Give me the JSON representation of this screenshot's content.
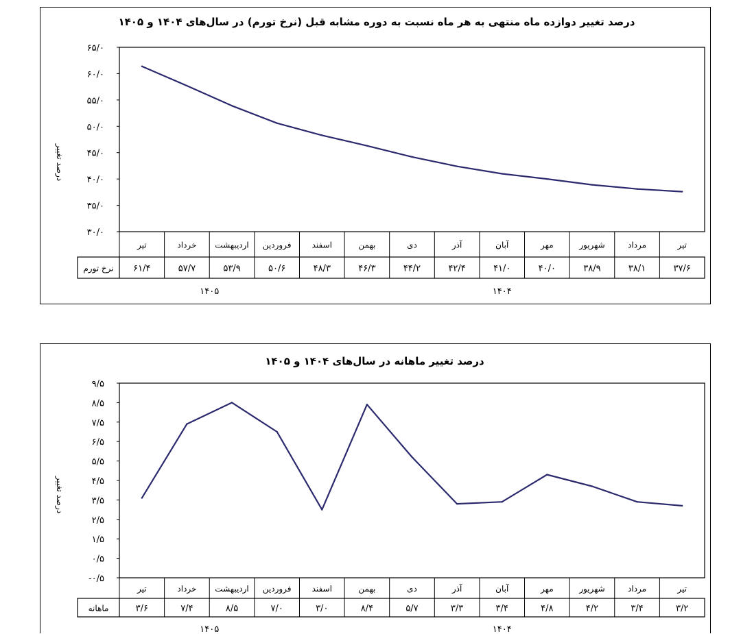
{
  "chart_data": [
    {
      "type": "line",
      "title": "درصد تغییر دوازده ماه منتهی به هر ماه نسبت به دوره مشابه قبل (نرخ تورم) در سال‌های ۱۴۰۴ و ۱۴۰۵",
      "ylabel": "درصد تغییر",
      "ylim": [
        30,
        65
      ],
      "yticks": [
        30,
        35,
        40,
        45,
        50,
        55,
        60,
        65
      ],
      "ytick_labels": [
        "۳۰/۰",
        "۳۵/۰",
        "۴۰/۰",
        "۴۵/۰",
        "۵۰/۰",
        "۵۵/۰",
        "۶۰/۰",
        "۶۵/۰"
      ],
      "grid": false,
      "line_color": "#2b2a6e",
      "categories": [
        "تیر",
        "مرداد",
        "شهریور",
        "مهر",
        "آبان",
        "آذر",
        "دی",
        "بهمن",
        "اسفند",
        "فروردین",
        "اردیبهشت",
        "خرداد",
        "تیر"
      ],
      "series": [
        {
          "values": [
            37.6,
            38.1,
            38.9,
            40.0,
            41.0,
            42.4,
            44.2,
            46.3,
            48.3,
            50.6,
            53.9,
            57.7,
            61.4
          ],
          "value_labels": [
            "۳۷/۶",
            "۳۸/۱",
            "۳۸/۹",
            "۴۰/۰",
            "۴۱/۰",
            "۴۲/۴",
            "۴۴/۲",
            "۴۶/۳",
            "۴۸/۳",
            "۵۰/۶",
            "۵۳/۹",
            "۵۷/۷",
            "۶۱/۴"
          ]
        }
      ],
      "table_row_label": "نرخ تورم",
      "year_labels": [
        "۱۴۰۴",
        "۱۴۰۵"
      ],
      "year_groups": [
        9,
        4
      ]
    },
    {
      "type": "line",
      "title": "درصد تغییر ماهانه در سال‌های ۱۴۰۴ و ۱۴۰۵",
      "ylabel": "درصد تغییر",
      "ylim": [
        -0.5,
        9.5
      ],
      "yticks": [
        -0.5,
        0.5,
        1.5,
        2.5,
        3.5,
        4.5,
        5.5,
        6.5,
        7.5,
        8.5,
        9.5
      ],
      "ytick_labels": [
        "-۰/۵",
        "۰/۵",
        "۱/۵",
        "۲/۵",
        "۳/۵",
        "۴/۵",
        "۵/۵",
        "۶/۵",
        "۷/۵",
        "۸/۵",
        "۹/۵"
      ],
      "grid": false,
      "line_color": "#2b2a6e",
      "categories": [
        "تیر",
        "مرداد",
        "شهریور",
        "مهر",
        "آبان",
        "آذر",
        "دی",
        "بهمن",
        "اسفند",
        "فروردین",
        "اردیبهشت",
        "خرداد",
        "تیر"
      ],
      "series": [
        {
          "values": [
            3.2,
            3.4,
            4.2,
            4.8,
            3.4,
            3.3,
            5.7,
            8.4,
            3.0,
            7.0,
            8.5,
            7.4,
            3.6
          ],
          "value_labels": [
            "۳/۲",
            "۳/۴",
            "۴/۲",
            "۴/۸",
            "۳/۴",
            "۳/۳",
            "۵/۷",
            "۸/۴",
            "۳/۰",
            "۷/۰",
            "۸/۵",
            "۷/۴",
            "۳/۶"
          ]
        }
      ],
      "table_row_label": "ماهانه",
      "year_labels": [
        "۱۴۰۴",
        "۱۴۰۵"
      ],
      "year_groups": [
        9,
        4
      ]
    }
  ]
}
